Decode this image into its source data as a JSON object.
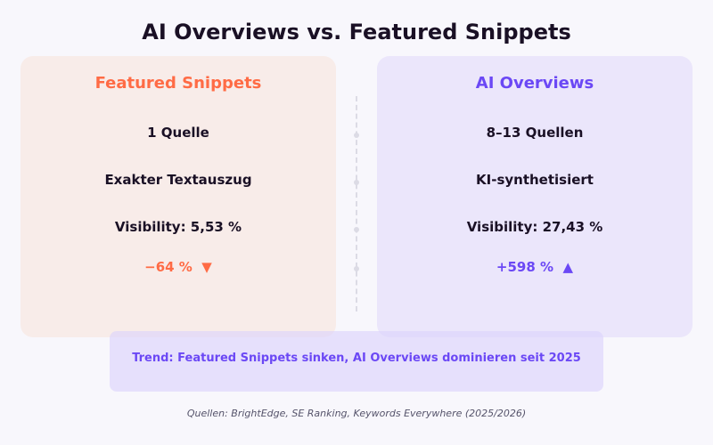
{
  "title": "AI Overviews vs. Featured Snippets",
  "left": {
    "heading": "Featured Snippets",
    "sources": "1 Quelle",
    "type": "Exakter Textauszug",
    "visibility": "Visibility: 5,53 %",
    "change": "−64 %",
    "arrow": "▼",
    "color": "#ff6b45"
  },
  "right": {
    "heading": "AI Overviews",
    "sources": "8–13 Quellen",
    "type": "KI-synthetisiert",
    "visibility": "Visibility: 27,43 %",
    "change": "+598 %",
    "arrow": "▲",
    "color": "#6b48f5"
  },
  "banner": "Trend: Featured Snippets sinken, AI Overviews dominieren seit 2025",
  "sources_note": "Quellen: BrightEdge, SE Ranking, Keywords Everywhere (2025/2026)"
}
